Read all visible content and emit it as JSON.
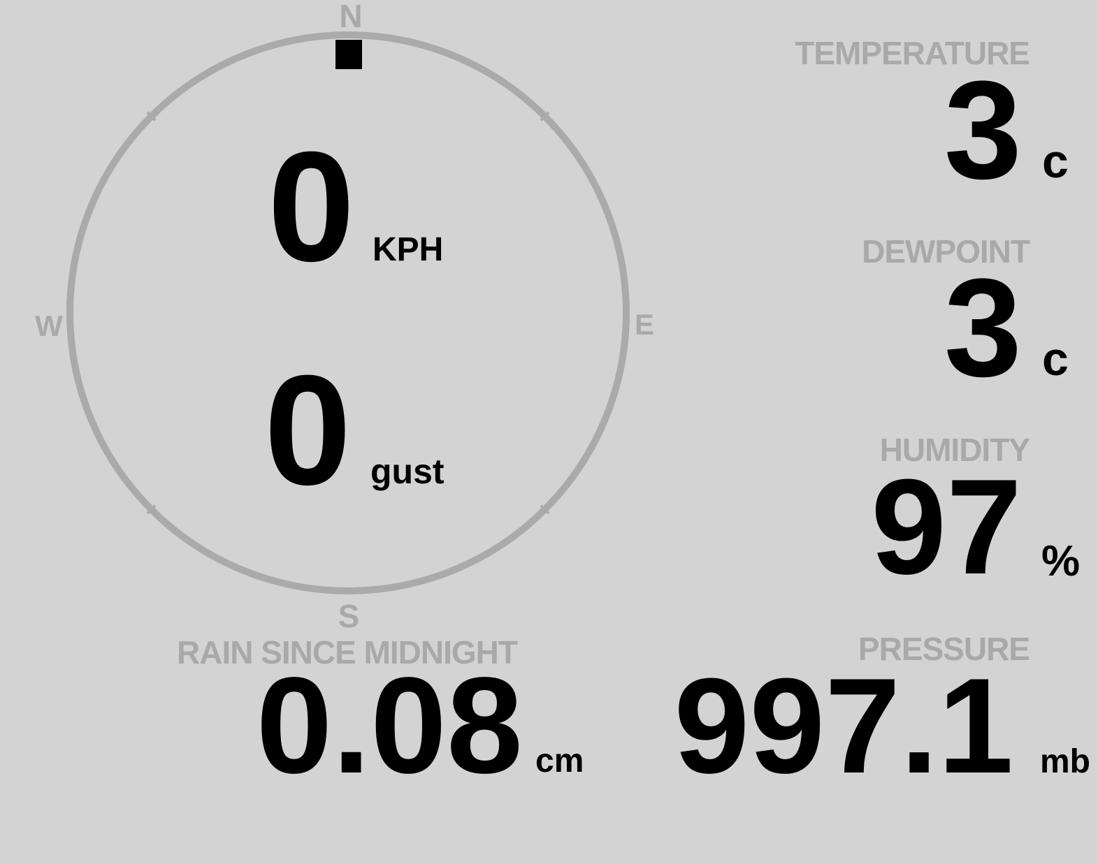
{
  "compass": {
    "north": "N",
    "south": "S",
    "east": "E",
    "west": "W",
    "wind_direction_deg": 0,
    "ring_color": "#aaaaaa",
    "marker_color": "#000000"
  },
  "wind": {
    "speed": "0",
    "speed_unit": "KPH",
    "gust": "0",
    "gust_unit": "gust"
  },
  "temperature": {
    "label": "TEMPERATURE",
    "value": "3",
    "unit": "c"
  },
  "dewpoint": {
    "label": "DEWPOINT",
    "value": "3",
    "unit": "c"
  },
  "humidity": {
    "label": "HUMIDITY",
    "value": "97",
    "unit": "%"
  },
  "pressure": {
    "label": "PRESSURE",
    "value": "997.1",
    "unit": "mb"
  },
  "rain": {
    "label": "RAIN SINCE MIDNIGHT",
    "value": "0.08",
    "unit": "cm"
  },
  "colors": {
    "background": "#d3d3d3",
    "label": "#a9a9a9",
    "value": "#000000"
  }
}
